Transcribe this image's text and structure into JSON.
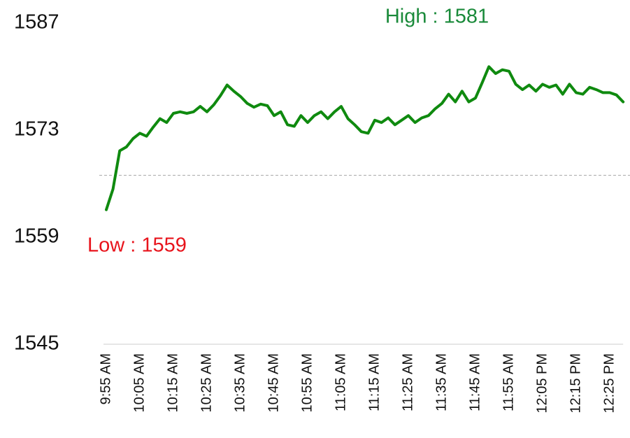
{
  "chart_data": {
    "type": "line",
    "categories": [
      "9:55 AM",
      null,
      null,
      null,
      null,
      "10:05 AM",
      null,
      null,
      null,
      null,
      "10:15 AM",
      null,
      null,
      null,
      null,
      "10:25 AM",
      null,
      null,
      null,
      null,
      "10:35 AM",
      null,
      null,
      null,
      null,
      "10:45 AM",
      null,
      null,
      null,
      null,
      "10:55 AM",
      null,
      null,
      null,
      null,
      "11:05 AM",
      null,
      null,
      null,
      null,
      "11:15 AM",
      null,
      null,
      null,
      null,
      "11:25 AM",
      null,
      null,
      null,
      null,
      "11:35 AM",
      null,
      null,
      null,
      null,
      "11:45 AM",
      null,
      null,
      null,
      null,
      "11:55 AM",
      null,
      null,
      null,
      null,
      "12:05 PM",
      null,
      null,
      null,
      null,
      "12:15 PM",
      null,
      null,
      null,
      null,
      "12:25 PM",
      null,
      null
    ],
    "series": [
      {
        "color": "#0f8a0f",
        "values": [
          1562.6,
          1565.3,
          1570.3,
          1570.8,
          1571.9,
          1572.6,
          1572.2,
          1573.4,
          1574.5,
          1574.0,
          1575.2,
          1575.4,
          1575.2,
          1575.4,
          1576.1,
          1575.4,
          1576.3,
          1577.5,
          1578.9,
          1578.1,
          1577.4,
          1576.5,
          1576.0,
          1576.4,
          1576.2,
          1574.9,
          1575.4,
          1573.7,
          1573.5,
          1574.9,
          1574.0,
          1574.9,
          1575.4,
          1574.5,
          1575.4,
          1576.1,
          1574.5,
          1573.7,
          1572.8,
          1572.6,
          1574.3,
          1574.0,
          1574.6,
          1573.7,
          1574.3,
          1574.9,
          1574.0,
          1574.6,
          1574.9,
          1575.8,
          1576.5,
          1577.7,
          1576.7,
          1578.1,
          1576.7,
          1577.2,
          1579.2,
          1581.3,
          1580.4,
          1580.9,
          1580.7,
          1579.0,
          1578.3,
          1578.9,
          1578.1,
          1579.0,
          1578.6,
          1578.9,
          1577.7,
          1579.0,
          1577.9,
          1577.7,
          1578.6,
          1578.3,
          1577.9,
          1577.9,
          1577.6,
          1576.7
        ]
      }
    ],
    "ylim": [
      1545,
      1587
    ],
    "yticks": [
      1545,
      1559,
      1573,
      1587
    ],
    "reference_line": 1567.1,
    "annotations": [
      {
        "text": "High : 1581",
        "color": "#1a8a3a"
      },
      {
        "text": "Low : 1559",
        "color": "#e8141c"
      }
    ]
  }
}
